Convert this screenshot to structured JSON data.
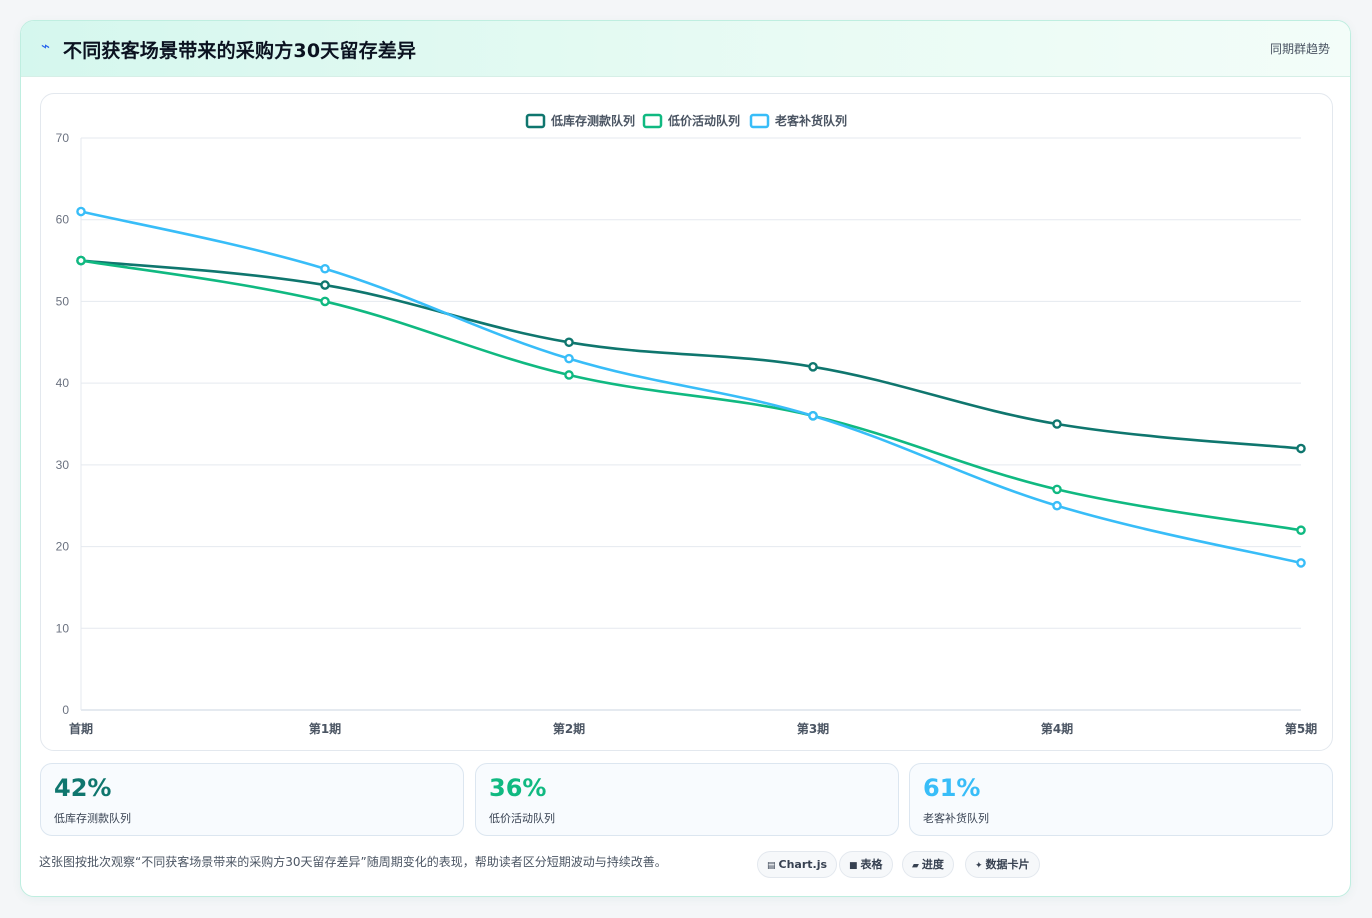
{
  "header": {
    "title": "不同获客场景带来的采购方30天留存差异",
    "subtitle": "同期群趋势",
    "icon": "pulse-icon"
  },
  "chart_data": {
    "type": "line",
    "categories": [
      "首期",
      "第1期",
      "第2期",
      "第3期",
      "第4期",
      "第5期"
    ],
    "series": [
      {
        "name": "低库存测款队列",
        "color": "#0f766e",
        "values": [
          55,
          52,
          45,
          42,
          35,
          32
        ]
      },
      {
        "name": "低价活动队列",
        "color": "#10b981",
        "values": [
          55,
          50,
          41,
          36,
          27,
          22
        ]
      },
      {
        "name": "老客补货队列",
        "color": "#38bdf8",
        "values": [
          61,
          54,
          43,
          36,
          25,
          18
        ]
      }
    ],
    "ylim": [
      0,
      70
    ],
    "yticks": [
      "0",
      "10",
      "20",
      "30",
      "40",
      "50",
      "60",
      "70"
    ],
    "grid": true,
    "legend": "top-center"
  },
  "stats": [
    {
      "value": "42%",
      "label": "低库存测款队列",
      "color": "#0f766e"
    },
    {
      "value": "36%",
      "label": "低价活动队列",
      "color": "#10b981"
    },
    {
      "value": "61%",
      "label": "老客补货队列",
      "color": "#38bdf8"
    }
  ],
  "footer": {
    "text": "这张图按批次观察“不同获客场景带来的采购方30天留存差异”随周期变化的表现，帮助读者区分短期波动与持续改善。",
    "tags": [
      {
        "icon": "chart-icon",
        "glyph": "▤",
        "label": "Chart.js"
      },
      {
        "icon": "table-icon",
        "glyph": "■",
        "label": "表格"
      },
      {
        "icon": "progress-icon",
        "glyph": "▰",
        "label": "进度"
      },
      {
        "icon": "sparkle-icon",
        "glyph": "✦",
        "label": "数据卡片"
      }
    ]
  }
}
